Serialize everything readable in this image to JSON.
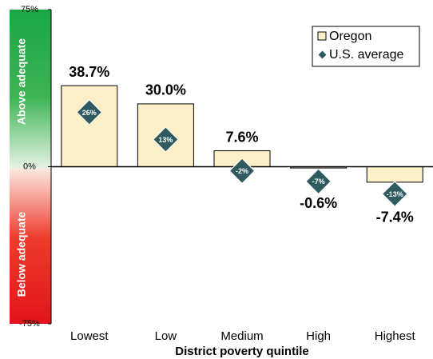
{
  "chart_data": {
    "type": "bar",
    "x_label": "District poverty quintile",
    "annotations": {
      "above": "Above adequate",
      "below": "Below adequate"
    },
    "categories": [
      "Lowest",
      "Low",
      "Medium",
      "High",
      "Highest"
    ],
    "series": [
      {
        "name": "Oregon",
        "color": "#fdf0c9",
        "values": [
          38.7,
          30.0,
          7.6,
          -0.6,
          -7.4
        ],
        "value_labels": [
          "38.7%",
          "30.0%",
          "7.6%",
          "-0.6%",
          "-7.4%"
        ]
      },
      {
        "name": "U.S. average",
        "color": "#2f5b60",
        "marker": "diamond",
        "values": [
          26,
          13,
          -2,
          -7,
          -13
        ],
        "value_labels": [
          "26%",
          "13%",
          "-2%",
          "-7%",
          "-13%"
        ]
      }
    ],
    "ylim": [
      -75,
      75
    ],
    "yticks": [
      {
        "value": 75,
        "label": "75%"
      },
      {
        "value": 0,
        "label": "0%"
      },
      {
        "value": -75,
        "label": "-75%"
      }
    ],
    "legend": "upper right"
  }
}
